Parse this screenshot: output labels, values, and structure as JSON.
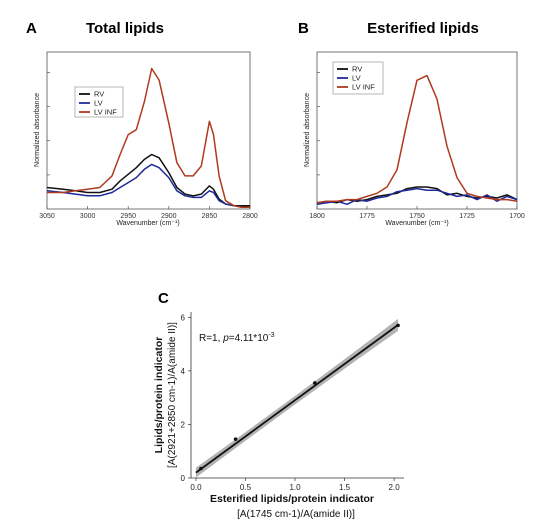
{
  "chart_data": [
    {
      "panel": "A",
      "title": "Total lipids",
      "type": "line",
      "xlabel": "Wavenumber (cm⁻¹)",
      "ylabel": "Normalized absorbance",
      "x_reversed": true,
      "xlim": [
        3050,
        2800
      ],
      "xticks": [
        3050,
        3000,
        2950,
        2900,
        2850,
        2800
      ],
      "legend_position": "top-left",
      "series": [
        {
          "name": "RV",
          "color": "#111111",
          "x": [
            3050,
            3030,
            3015,
            3000,
            2985,
            2970,
            2960,
            2950,
            2940,
            2930,
            2921,
            2912,
            2900,
            2890,
            2880,
            2870,
            2860,
            2850,
            2845,
            2838,
            2830,
            2820,
            2810,
            2800
          ],
          "y": [
            0.13,
            0.12,
            0.11,
            0.1,
            0.1,
            0.12,
            0.17,
            0.21,
            0.25,
            0.3,
            0.33,
            0.31,
            0.22,
            0.13,
            0.09,
            0.08,
            0.09,
            0.14,
            0.12,
            0.06,
            0.03,
            0.02,
            0.02,
            0.02
          ]
        },
        {
          "name": "LV",
          "color": "#1f2a9a",
          "x": [
            3050,
            3030,
            3015,
            3000,
            2985,
            2970,
            2960,
            2950,
            2940,
            2930,
            2921,
            2912,
            2900,
            2890,
            2880,
            2870,
            2860,
            2850,
            2845,
            2838,
            2830,
            2820,
            2810,
            2800
          ],
          "y": [
            0.11,
            0.1,
            0.09,
            0.08,
            0.08,
            0.1,
            0.13,
            0.16,
            0.19,
            0.24,
            0.27,
            0.25,
            0.19,
            0.11,
            0.08,
            0.07,
            0.07,
            0.11,
            0.1,
            0.05,
            0.03,
            0.02,
            0.01,
            0.01
          ]
        },
        {
          "name": "LV INF",
          "color": "#b03a1e",
          "x": [
            3050,
            3030,
            3015,
            3000,
            2985,
            2970,
            2960,
            2950,
            2940,
            2930,
            2921,
            2912,
            2900,
            2890,
            2880,
            2870,
            2860,
            2850,
            2845,
            2838,
            2830,
            2820,
            2810,
            2800
          ],
          "y": [
            0.1,
            0.1,
            0.11,
            0.12,
            0.13,
            0.2,
            0.33,
            0.45,
            0.48,
            0.65,
            0.85,
            0.78,
            0.52,
            0.28,
            0.2,
            0.2,
            0.26,
            0.53,
            0.45,
            0.2,
            0.05,
            0.02,
            0.01,
            0.01
          ]
        }
      ]
    },
    {
      "panel": "B",
      "title": "Esterified lipids",
      "type": "line",
      "xlabel": "Wavenumber (cm⁻¹)",
      "ylabel": "Normalized absorbance",
      "x_reversed": true,
      "xlim": [
        1800,
        1700
      ],
      "xticks": [
        1800,
        1775,
        1750,
        1725,
        1700
      ],
      "legend_position": "top-left",
      "series": [
        {
          "name": "RV",
          "color": "#111111",
          "x": [
            1800,
            1795,
            1790,
            1785,
            1780,
            1775,
            1770,
            1765,
            1760,
            1755,
            1750,
            1745,
            1740,
            1735,
            1730,
            1725,
            1720,
            1715,
            1710,
            1705,
            1700
          ],
          "y": [
            0.04,
            0.05,
            0.04,
            0.06,
            0.05,
            0.06,
            0.08,
            0.09,
            0.1,
            0.13,
            0.14,
            0.14,
            0.13,
            0.09,
            0.1,
            0.08,
            0.07,
            0.08,
            0.07,
            0.09,
            0.06
          ]
        },
        {
          "name": "LV",
          "color": "#1f2a9a",
          "x": [
            1800,
            1795,
            1790,
            1785,
            1780,
            1775,
            1770,
            1765,
            1760,
            1755,
            1750,
            1745,
            1740,
            1735,
            1730,
            1725,
            1720,
            1715,
            1710,
            1705,
            1700
          ],
          "y": [
            0.03,
            0.04,
            0.05,
            0.03,
            0.06,
            0.05,
            0.07,
            0.08,
            0.11,
            0.12,
            0.13,
            0.12,
            0.12,
            0.1,
            0.08,
            0.09,
            0.06,
            0.09,
            0.05,
            0.08,
            0.06
          ]
        },
        {
          "name": "LV INF",
          "color": "#b03a1e",
          "x": [
            1800,
            1795,
            1790,
            1785,
            1780,
            1775,
            1770,
            1765,
            1760,
            1755,
            1750,
            1745,
            1740,
            1735,
            1730,
            1725,
            1720,
            1715,
            1710,
            1705,
            1700
          ],
          "y": [
            0.04,
            0.05,
            0.05,
            0.06,
            0.06,
            0.08,
            0.1,
            0.14,
            0.25,
            0.55,
            0.82,
            0.85,
            0.7,
            0.4,
            0.2,
            0.1,
            0.08,
            0.07,
            0.06,
            0.06,
            0.05
          ]
        }
      ]
    },
    {
      "panel": "C",
      "type": "scatter",
      "xlabel": "Esterified lipids/protein indicator",
      "xlabel_sub": "[A(1745 cm-1)/A(amide II)]",
      "ylabel": "Lipids/protein indicator",
      "ylabel_sub": "[A(2921+2850 cm-1)/A(amide II)]",
      "annotation": "R=1, p=4.11*10-3",
      "xlim": [
        -0.05,
        2.1
      ],
      "ylim": [
        0,
        6.2
      ],
      "xticks": [
        0.0,
        0.5,
        1.0,
        1.5,
        2.0
      ],
      "yticks": [
        0,
        2,
        4,
        6
      ],
      "points": [
        {
          "x": 0.05,
          "y": 0.35
        },
        {
          "x": 0.4,
          "y": 1.45
        },
        {
          "x": 1.2,
          "y": 3.55
        },
        {
          "x": 2.04,
          "y": 5.7
        }
      ],
      "fit_line": {
        "x": [
          0.0,
          2.04
        ],
        "y": [
          0.2,
          5.72
        ]
      },
      "confidence_band": true
    }
  ]
}
